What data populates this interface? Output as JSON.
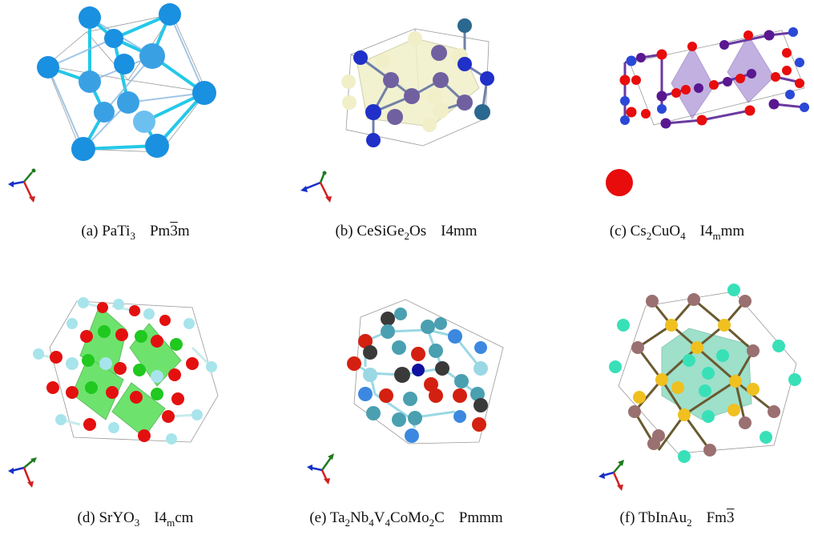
{
  "figure": {
    "panels": [
      {
        "id": "a",
        "label": "(a)",
        "formula": "PaTi₃",
        "spacegroup": "Pm3̄m"
      },
      {
        "id": "b",
        "label": "(b)",
        "formula": "CeSiGe₂Os",
        "spacegroup": "I4mm"
      },
      {
        "id": "c",
        "label": "(c)",
        "formula": "Cs₂CuO₄",
        "spacegroup": "I4ₘmm"
      },
      {
        "id": "d",
        "label": "(d)",
        "formula": "SrYO₃",
        "spacegroup": "I4ₘcm"
      },
      {
        "id": "e",
        "label": "(e)",
        "formula": "Ta₂Nb₄V₄CoMo₂C",
        "spacegroup": "Pmmm"
      },
      {
        "id": "f",
        "label": "(f)",
        "formula": "TbInAu₂",
        "spacegroup": "Fm3̄"
      }
    ]
  },
  "colors": {
    "axis_x": "#1530c8",
    "axis_y": "#1e7a1e",
    "axis_z": "#d02020",
    "a_atom": "#1a90e0",
    "a_atom_light": "#6cc0f0",
    "a_bond": "#24c8e8",
    "b_atom_blue": "#2030c8",
    "b_atom_purple": "#7060a0",
    "b_atom_teal": "#2a6890",
    "b_atom_cream": "#f0efc8",
    "c_atom_red": "#e80c0c",
    "c_atom_purple": "#5a1890",
    "c_atom_blue": "#2a48d8",
    "c_poly": "#9070c8",
    "d_atom_red": "#e41010",
    "d_atom_green": "#20c820",
    "d_atom_cyan": "#a8e4ec",
    "d_poly": "#30d830",
    "e_atom_dark": "#3a3a3a",
    "e_atom_red": "#d42010",
    "e_atom_teal": "#4aa0b0",
    "e_atom_blue": "#3c88e0",
    "e_atom_navy": "#1010a0",
    "e_atom_cyan": "#9ad8e4",
    "f_atom_mauve": "#9a7070",
    "f_atom_gold": "#f0c020",
    "f_atom_aqua": "#38e0b8",
    "f_poly": "#50c8a0"
  }
}
